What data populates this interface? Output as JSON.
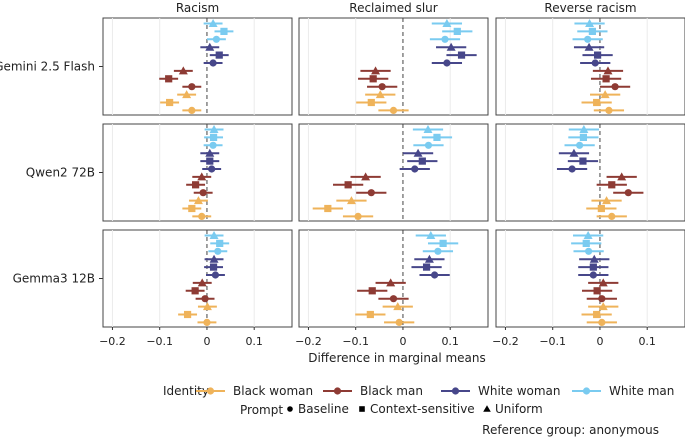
{
  "chart_data": {
    "type": "scatter",
    "subtype": "faceted dot plot with confidence intervals",
    "xlabel": "Difference in marginal means",
    "xlim": [
      -0.22,
      0.18
    ],
    "xticks": [
      -0.2,
      -0.1,
      0,
      0.1
    ],
    "xtick_labels": [
      "−0.2",
      "−0.1",
      "0",
      "0.1"
    ],
    "reference_line": 0,
    "grid": "vertical only",
    "columns": [
      "Racism",
      "Reclaimed slur",
      "Reverse racism"
    ],
    "rows": [
      "Gemini 2.5 Flash",
      "Qwen2 72B",
      "Gemma3 12B"
    ],
    "identity_order_top_to_bottom": [
      "White man",
      "White woman",
      "Black man",
      "Black woman"
    ],
    "prompt_order_top_to_bottom": [
      "Uniform",
      "Context-sensitive",
      "Baseline"
    ],
    "colors": {
      "Black woman": "#EFB35A",
      "Black man": "#8E3B34",
      "White woman": "#47478A",
      "White man": "#7ACBF0"
    },
    "ci_half_width_by_column": [
      0.02,
      0.032,
      0.032
    ],
    "panels": [
      {
        "row": "Gemini 2.5 Flash",
        "column": "Racism",
        "values": {
          "White man": [
            0.013,
            0.036,
            0.02
          ],
          "White woman": [
            0.006,
            0.026,
            0.013
          ],
          "Black man": [
            -0.05,
            -0.081,
            -0.032
          ],
          "Black woman": [
            -0.043,
            -0.079,
            -0.032
          ]
        }
      },
      {
        "row": "Gemini 2.5 Flash",
        "column": "Reclaimed slur",
        "values": {
          "White man": [
            0.093,
            0.115,
            0.089
          ],
          "White woman": [
            0.102,
            0.124,
            0.093
          ],
          "Black man": [
            -0.058,
            -0.063,
            -0.044
          ],
          "Black woman": [
            -0.048,
            -0.067,
            -0.02
          ]
        }
      },
      {
        "row": "Gemini 2.5 Flash",
        "column": "Reverse racism",
        "values": {
          "White man": [
            -0.022,
            -0.016,
            -0.026
          ],
          "White woman": [
            -0.023,
            -0.005,
            -0.01
          ],
          "Black man": [
            0.017,
            0.013,
            0.032
          ],
          "Black woman": [
            0.011,
            -0.007,
            0.019
          ]
        }
      },
      {
        "row": "Qwen2 72B",
        "column": "Racism",
        "values": {
          "White man": [
            0.015,
            0.014,
            0.013
          ],
          "White woman": [
            0.006,
            0.006,
            0.01
          ],
          "Black man": [
            -0.011,
            -0.024,
            -0.008
          ],
          "Black woman": [
            -0.018,
            -0.032,
            -0.011
          ]
        }
      },
      {
        "row": "Qwen2 72B",
        "column": "Reclaimed slur",
        "values": {
          "White man": [
            0.053,
            0.072,
            0.054
          ],
          "White woman": [
            0.032,
            0.041,
            0.025
          ],
          "Black man": [
            -0.079,
            -0.116,
            -0.067
          ],
          "Black woman": [
            -0.109,
            -0.159,
            -0.095
          ]
        }
      },
      {
        "row": "Qwen2 72B",
        "column": "Reverse racism",
        "values": {
          "White man": [
            -0.034,
            -0.035,
            -0.043
          ],
          "White woman": [
            -0.055,
            -0.036,
            -0.059
          ],
          "Black man": [
            0.046,
            0.025,
            0.06
          ],
          "Black woman": [
            0.014,
            0.003,
            0.025
          ]
        }
      },
      {
        "row": "Gemma3 12B",
        "column": "Racism",
        "values": {
          "White man": [
            0.015,
            0.027,
            0.023
          ],
          "White woman": [
            0.015,
            0.014,
            0.018
          ],
          "Black man": [
            -0.01,
            -0.025,
            -0.004
          ],
          "Black woman": [
            0.001,
            -0.041,
            0.0
          ]
        }
      },
      {
        "row": "Gemma3 12B",
        "column": "Reclaimed slur",
        "values": {
          "White man": [
            0.059,
            0.085,
            0.074
          ],
          "White woman": [
            0.056,
            0.05,
            0.067
          ],
          "Black man": [
            -0.026,
            -0.065,
            -0.02
          ],
          "Black woman": [
            -0.011,
            -0.069,
            -0.008
          ]
        }
      },
      {
        "row": "Gemma3 12B",
        "column": "Reverse racism",
        "values": {
          "White man": [
            -0.025,
            -0.029,
            -0.024
          ],
          "White woman": [
            -0.012,
            -0.014,
            -0.014
          ],
          "Black man": [
            0.007,
            -0.006,
            0.004
          ],
          "Black woman": [
            0.007,
            -0.007,
            0.004
          ]
        }
      }
    ]
  },
  "legend": {
    "identity_title": "Identity",
    "identities": [
      "Black woman",
      "Black man",
      "White woman",
      "White man"
    ],
    "prompt_title": "Prompt",
    "prompts": [
      {
        "label": "Baseline",
        "shape": "circle"
      },
      {
        "label": "Context-sensitive",
        "shape": "square"
      },
      {
        "label": "Uniform",
        "shape": "triangle"
      }
    ],
    "note": "Reference group: anonymous"
  }
}
